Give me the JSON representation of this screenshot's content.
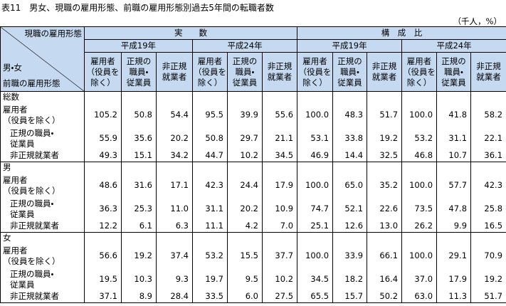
{
  "title": "表11　男女、現職の雇用形態、前職の雇用形態別過去5年間の転職者数",
  "unit": "（千人，%）",
  "table": {
    "corner": {
      "top": "現職の雇用形態",
      "middle": "男・女",
      "bottom": "前職の雇用形態"
    },
    "header_groups": [
      "実　　数",
      "構　成　比"
    ],
    "years": [
      "平成19年",
      "平成24年",
      "平成19年",
      "平成24年"
    ],
    "columns": [
      [
        "雇用者",
        "（役員を",
        "除く）"
      ],
      [
        "正規の",
        "職員・",
        "従業員"
      ],
      [
        "非正規",
        "就業者"
      ]
    ],
    "groups": [
      {
        "label": "総数",
        "rows": [
          {
            "label": [
              "雇用者",
              "（役員を除く）"
            ],
            "values": [
              "105.2",
              "50.8",
              "54.4",
              "95.5",
              "39.9",
              "55.6",
              "100.0",
              "48.3",
              "51.7",
              "100.0",
              "41.8",
              "58.2"
            ]
          },
          {
            "label": [
              "正規の職員・",
              "従業員"
            ],
            "values": [
              "55.9",
              "35.6",
              "20.2",
              "50.8",
              "29.7",
              "21.1",
              "53.1",
              "33.8",
              "19.2",
              "53.2",
              "31.1",
              "22.1"
            ]
          },
          {
            "label": [
              "非正規就業者"
            ],
            "values": [
              "49.3",
              "15.1",
              "34.2",
              "44.7",
              "10.2",
              "34.5",
              "46.9",
              "14.4",
              "32.5",
              "46.8",
              "10.7",
              "36.1"
            ]
          }
        ]
      },
      {
        "label": "男",
        "rows": [
          {
            "label": [
              "雇用者",
              "（役員を除く）"
            ],
            "values": [
              "48.6",
              "31.6",
              "17.1",
              "42.3",
              "24.4",
              "17.9",
              "100.0",
              "65.0",
              "35.2",
              "100.0",
              "57.7",
              "42.3"
            ]
          },
          {
            "label": [
              "正規の職員・",
              "従業員"
            ],
            "values": [
              "36.3",
              "25.3",
              "11.0",
              "31.1",
              "20.2",
              "10.9",
              "74.7",
              "52.1",
              "22.6",
              "73.5",
              "47.8",
              "25.8"
            ]
          },
          {
            "label": [
              "非正規就業者"
            ],
            "values": [
              "12.2",
              "6.1",
              "6.3",
              "11.1",
              "4.2",
              "7.0",
              "25.1",
              "12.6",
              "13.0",
              "26.2",
              "9.9",
              "16.5"
            ]
          }
        ]
      },
      {
        "label": "女",
        "rows": [
          {
            "label": [
              "雇用者",
              "（役員を除く）"
            ],
            "values": [
              "56.6",
              "19.2",
              "37.4",
              "53.2",
              "15.5",
              "37.7",
              "100.0",
              "33.9",
              "66.1",
              "100.0",
              "29.1",
              "70.9"
            ]
          },
          {
            "label": [
              "正規の職員・",
              "従業員"
            ],
            "values": [
              "19.5",
              "10.3",
              "9.3",
              "19.7",
              "9.5",
              "10.2",
              "34.5",
              "18.2",
              "16.4",
              "37.0",
              "17.9",
              "19.2"
            ]
          },
          {
            "label": [
              "非正規就業者"
            ],
            "values": [
              "37.1",
              "8.9",
              "28.4",
              "33.5",
              "6.0",
              "27.5",
              "65.5",
              "15.7",
              "50.2",
              "63.0",
              "11.3",
              "51.7"
            ]
          }
        ]
      }
    ]
  }
}
